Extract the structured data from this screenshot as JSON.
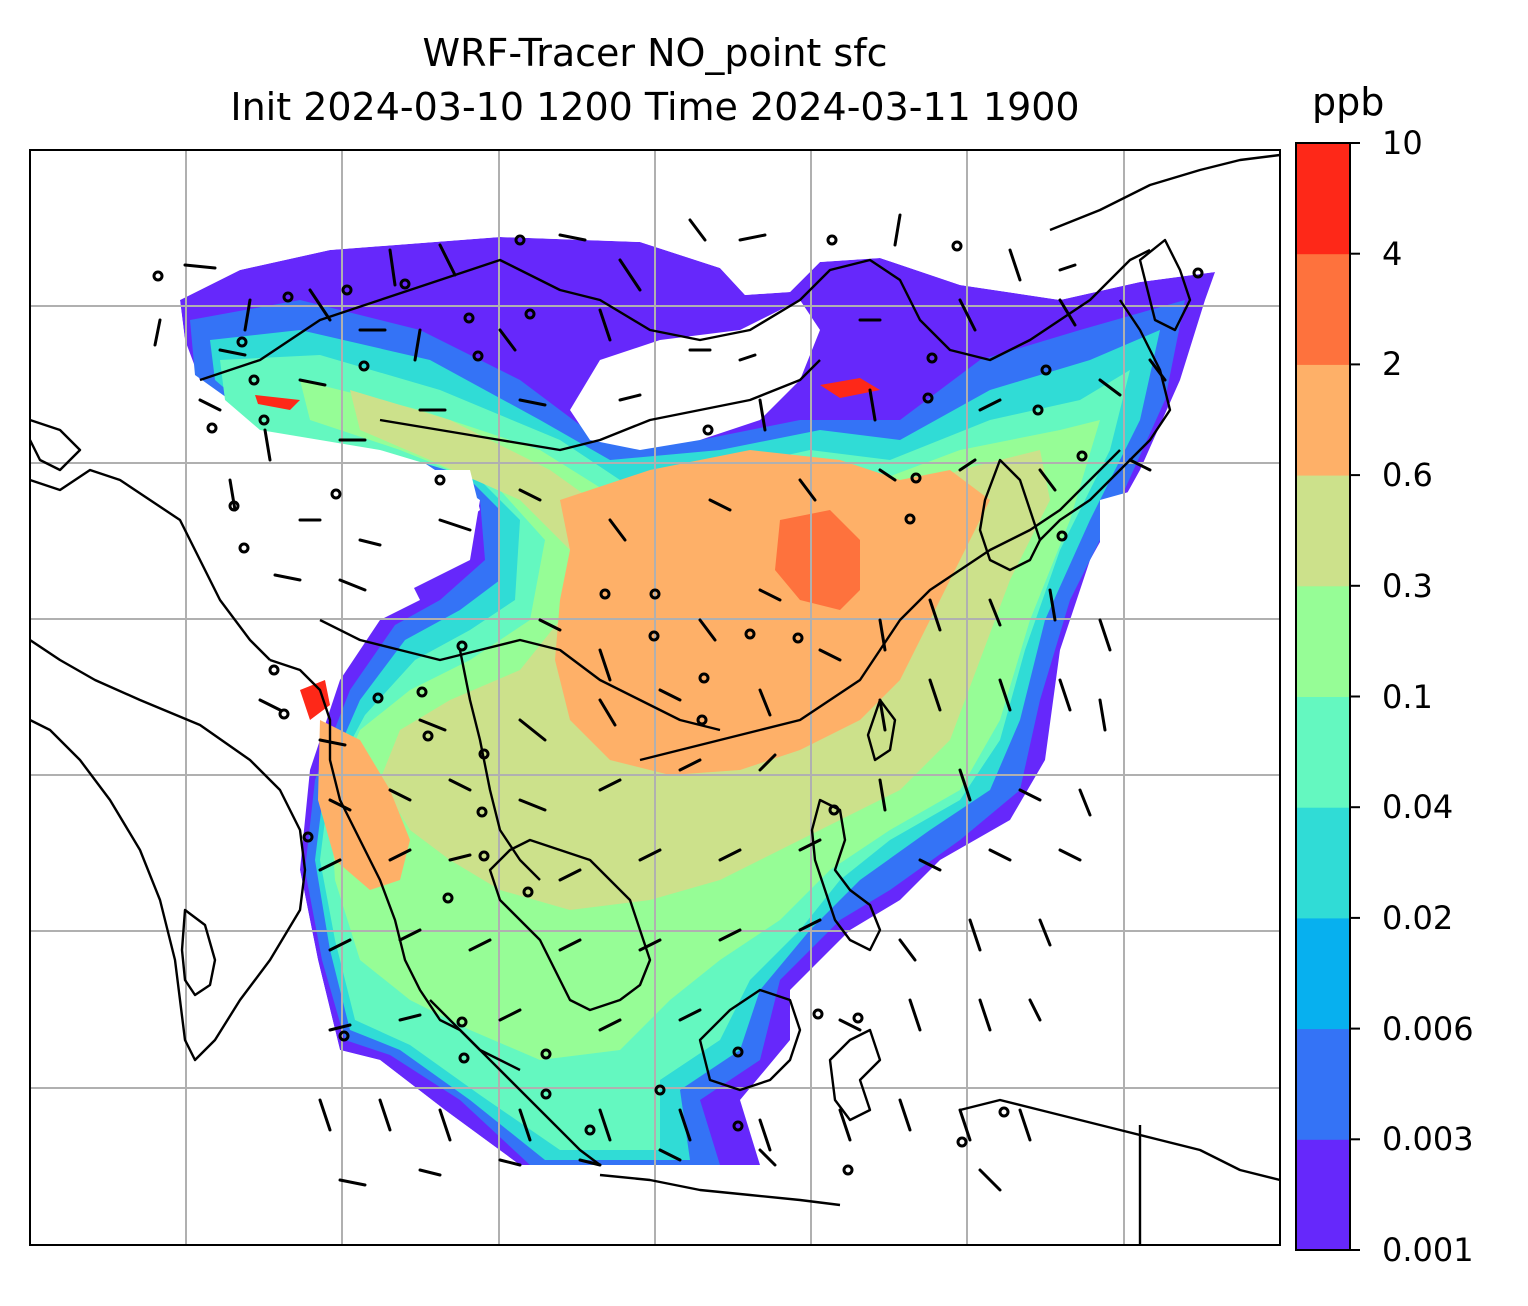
{
  "title_line1": "WRF-Tracer NO_point sfc",
  "title_line2": "Init 2024-03-10 1200 Time 2024-03-11 1900",
  "colorbar": {
    "unit": "ppb",
    "levels": [
      "0.001",
      "0.003",
      "0.006",
      "0.02",
      "0.04",
      "0.1",
      "0.3",
      "0.6",
      "2",
      "4",
      "10"
    ],
    "colors": [
      "#6628fb",
      "#3473f6",
      "#07b0ef",
      "#30dcd6",
      "#64f8c0",
      "#96fd96",
      "#cce18b",
      "#feb068",
      "#fe723d",
      "#fe2818"
    ]
  },
  "colors": {
    "land_outline": "#000000",
    "gridline": "#b0b0b0",
    "wind_barb": "#000000"
  }
}
